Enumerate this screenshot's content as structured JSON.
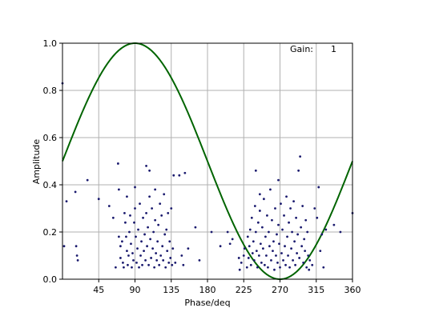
{
  "chart_data": {
    "type": "line+scatter",
    "xlabel": "Phase/deq",
    "ylabel": "Amplitude",
    "xlim": [
      0,
      360
    ],
    "ylim": [
      0.0,
      1.0
    ],
    "xticks": [
      45,
      90,
      135,
      180,
      225,
      270,
      315,
      360
    ],
    "yticks": [
      0.0,
      0.2,
      0.4,
      0.6,
      0.8,
      1.0
    ],
    "xtick_labels": [
      "45",
      "90",
      "135",
      "180",
      "225",
      "270",
      "315",
      "360"
    ],
    "ytick_labels": [
      "0.0",
      "0.2",
      "0.4",
      "0.6",
      "0.8",
      "1.0"
    ],
    "grid": true,
    "annotation": {
      "label": "Gain:",
      "value": "1"
    },
    "curve": {
      "type": "line",
      "formula": "0.5 + 0.5*sin(phase_deg)",
      "color": "#006400",
      "x": [
        0,
        15,
        30,
        45,
        60,
        75,
        90,
        105,
        120,
        135,
        150,
        165,
        180,
        195,
        210,
        225,
        240,
        255,
        270,
        285,
        300,
        315,
        330,
        345,
        360
      ],
      "y": [
        0.5,
        0.629,
        0.75,
        0.854,
        0.933,
        0.983,
        1.0,
        0.983,
        0.933,
        0.854,
        0.75,
        0.629,
        0.5,
        0.371,
        0.25,
        0.146,
        0.067,
        0.017,
        0.0,
        0.017,
        0.067,
        0.146,
        0.25,
        0.371,
        0.5
      ]
    },
    "scatter": {
      "type": "scatter",
      "color": "#1a1a6e",
      "points": [
        [
          0,
          0.83
        ],
        [
          2,
          0.14
        ],
        [
          5,
          0.33
        ],
        [
          16,
          0.37
        ],
        [
          17,
          0.14
        ],
        [
          18,
          0.1
        ],
        [
          19,
          0.08
        ],
        [
          31,
          0.42
        ],
        [
          45,
          0.34
        ],
        [
          58,
          0.31
        ],
        [
          63,
          0.26
        ],
        [
          66,
          0.05
        ],
        [
          69,
          0.49
        ],
        [
          70,
          0.38
        ],
        [
          70,
          0.18
        ],
        [
          72,
          0.14
        ],
        [
          72,
          0.09
        ],
        [
          74,
          0.16
        ],
        [
          75,
          0.07
        ],
        [
          76,
          0.05
        ],
        [
          77,
          0.28
        ],
        [
          78,
          0.24
        ],
        [
          79,
          0.18
        ],
        [
          80,
          0.12
        ],
        [
          80,
          0.35
        ],
        [
          81,
          0.06
        ],
        [
          82,
          0.1
        ],
        [
          83,
          0.2
        ],
        [
          84,
          0.27
        ],
        [
          85,
          0.15
        ],
        [
          86,
          0.05
        ],
        [
          87,
          0.11
        ],
        [
          88,
          0.08
        ],
        [
          89,
          0.24
        ],
        [
          90,
          0.3
        ],
        [
          90,
          0.39
        ],
        [
          91,
          0.18
        ],
        [
          92,
          0.07
        ],
        [
          93,
          0.13
        ],
        [
          94,
          0.21
        ],
        [
          95,
          0.05
        ],
        [
          96,
          0.32
        ],
        [
          97,
          0.1
        ],
        [
          98,
          0.16
        ],
        [
          99,
          0.06
        ],
        [
          100,
          0.26
        ],
        [
          101,
          0.12
        ],
        [
          102,
          0.19
        ],
        [
          103,
          0.08
        ],
        [
          104,
          0.28
        ],
        [
          104,
          0.48
        ],
        [
          105,
          0.14
        ],
        [
          106,
          0.22
        ],
        [
          107,
          0.06
        ],
        [
          108,
          0.46
        ],
        [
          108,
          0.35
        ],
        [
          109,
          0.17
        ],
        [
          110,
          0.09
        ],
        [
          111,
          0.3
        ],
        [
          112,
          0.13
        ],
        [
          113,
          0.2
        ],
        [
          114,
          0.05
        ],
        [
          115,
          0.38
        ],
        [
          115,
          0.25
        ],
        [
          116,
          0.11
        ],
        [
          117,
          0.08
        ],
        [
          118,
          0.16
        ],
        [
          119,
          0.23
        ],
        [
          120,
          0.06
        ],
        [
          121,
          0.32
        ],
        [
          122,
          0.1
        ],
        [
          123,
          0.27
        ],
        [
          124,
          0.14
        ],
        [
          125,
          0.08
        ],
        [
          126,
          0.36
        ],
        [
          127,
          0.19
        ],
        [
          128,
          0.05
        ],
        [
          129,
          0.21
        ],
        [
          130,
          0.12
        ],
        [
          131,
          0.28
        ],
        [
          132,
          0.07
        ],
        [
          133,
          0.16
        ],
        [
          134,
          0.09
        ],
        [
          135,
          0.3
        ],
        [
          136,
          0.06
        ],
        [
          137,
          0.13
        ],
        [
          138,
          0.44
        ],
        [
          140,
          0.07
        ],
        [
          145,
          0.44
        ],
        [
          148,
          0.1
        ],
        [
          150,
          0.06
        ],
        [
          152,
          0.45
        ],
        [
          156,
          0.13
        ],
        [
          165,
          0.22
        ],
        [
          170,
          0.08
        ],
        [
          185,
          0.2
        ],
        [
          196,
          0.14
        ],
        [
          205,
          0.2
        ],
        [
          208,
          0.15
        ],
        [
          211,
          0.17
        ],
        [
          219,
          0.09
        ],
        [
          220,
          0.04
        ],
        [
          222,
          0.07
        ],
        [
          225,
          0.1
        ],
        [
          226,
          0.13
        ],
        [
          229,
          0.05
        ],
        [
          230,
          0.18
        ],
        [
          231,
          0.09
        ],
        [
          232,
          0.14
        ],
        [
          233,
          0.21
        ],
        [
          234,
          0.06
        ],
        [
          235,
          0.26
        ],
        [
          236,
          0.11
        ],
        [
          237,
          0.16
        ],
        [
          238,
          0.08
        ],
        [
          239,
          0.31
        ],
        [
          240,
          0.2
        ],
        [
          240,
          0.46
        ],
        [
          241,
          0.12
        ],
        [
          242,
          0.05
        ],
        [
          243,
          0.24
        ],
        [
          244,
          0.1
        ],
        [
          245,
          0.29
        ],
        [
          245,
          0.36
        ],
        [
          246,
          0.15
        ],
        [
          247,
          0.07
        ],
        [
          248,
          0.22
        ],
        [
          249,
          0.13
        ],
        [
          250,
          0.34
        ],
        [
          251,
          0.06
        ],
        [
          252,
          0.18
        ],
        [
          253,
          0.1
        ],
        [
          254,
          0.27
        ],
        [
          255,
          0.05
        ],
        [
          256,
          0.2
        ],
        [
          257,
          0.14
        ],
        [
          258,
          0.38
        ],
        [
          259,
          0.08
        ],
        [
          260,
          0.25
        ],
        [
          261,
          0.12
        ],
        [
          262,
          0.16
        ],
        [
          263,
          0.04
        ],
        [
          264,
          0.3
        ],
        [
          265,
          0.1
        ],
        [
          266,
          0.19
        ],
        [
          267,
          0.07
        ],
        [
          268,
          0.42
        ],
        [
          268,
          0.23
        ],
        [
          269,
          0.15
        ],
        [
          270,
          0.05
        ],
        [
          271,
          0.32
        ],
        [
          272,
          0.11
        ],
        [
          273,
          0.21
        ],
        [
          274,
          0.08
        ],
        [
          275,
          0.27
        ],
        [
          276,
          0.14
        ],
        [
          277,
          0.06
        ],
        [
          278,
          0.35
        ],
        [
          279,
          0.18
        ],
        [
          280,
          0.1
        ],
        [
          281,
          0.24
        ],
        [
          282,
          0.05
        ],
        [
          283,
          0.3
        ],
        [
          284,
          0.13
        ],
        [
          285,
          0.2
        ],
        [
          286,
          0.08
        ],
        [
          287,
          0.33
        ],
        [
          288,
          0.16
        ],
        [
          289,
          0.06
        ],
        [
          290,
          0.26
        ],
        [
          291,
          0.11
        ],
        [
          292,
          0.19
        ],
        [
          293,
          0.46
        ],
        [
          294,
          0.09
        ],
        [
          295,
          0.52
        ],
        [
          296,
          0.22
        ],
        [
          297,
          0.14
        ],
        [
          298,
          0.31
        ],
        [
          299,
          0.07
        ],
        [
          300,
          0.17
        ],
        [
          301,
          0.12
        ],
        [
          302,
          0.25
        ],
        [
          303,
          0.05
        ],
        [
          304,
          0.2
        ],
        [
          305,
          0.1
        ],
        [
          306,
          0.04
        ],
        [
          307,
          0.08
        ],
        [
          310,
          0.06
        ],
        [
          313,
          0.3
        ],
        [
          316,
          0.26
        ],
        [
          318,
          0.39
        ],
        [
          320,
          0.12
        ],
        [
          322,
          0.19
        ],
        [
          324,
          0.05
        ],
        [
          327,
          0.21
        ],
        [
          337,
          0.23
        ],
        [
          345,
          0.2
        ],
        [
          360,
          0.28
        ]
      ]
    }
  }
}
